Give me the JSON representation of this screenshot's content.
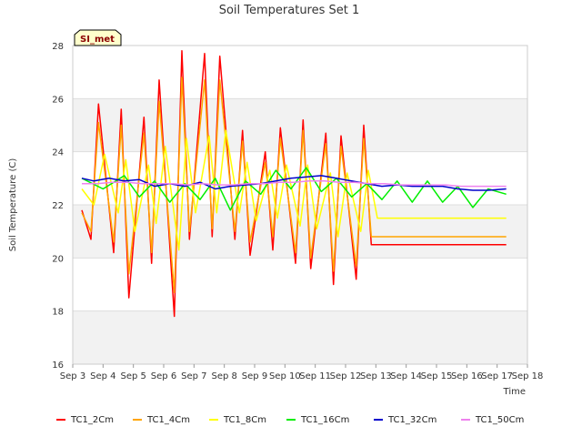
{
  "chart_data": {
    "type": "line",
    "title": "Soil Temperatures Set 1",
    "xlabel": "Time",
    "ylabel": "Soil Temperature (C)",
    "badge": "SI_met",
    "ylim": [
      16,
      28
    ],
    "yticks": [
      16,
      18,
      20,
      22,
      24,
      26,
      28
    ],
    "xlim": [
      3,
      18
    ],
    "xticks": [
      {
        "v": 3,
        "label": "Sep 3"
      },
      {
        "v": 4,
        "label": "Sep 4"
      },
      {
        "v": 5,
        "label": "Sep 5"
      },
      {
        "v": 6,
        "label": "Sep 6"
      },
      {
        "v": 7,
        "label": "Sep 7"
      },
      {
        "v": 8,
        "label": "Sep 8"
      },
      {
        "v": 9,
        "label": "Sep 9"
      },
      {
        "v": 10,
        "label": "Sep 10"
      },
      {
        "v": 11,
        "label": "Sep 11"
      },
      {
        "v": 12,
        "label": "Sep 12"
      },
      {
        "v": 13,
        "label": "Sep 13"
      },
      {
        "v": 14,
        "label": "Sep 14"
      },
      {
        "v": 15,
        "label": "Sep 15"
      },
      {
        "v": 16,
        "label": "Sep 16"
      },
      {
        "v": 17,
        "label": "Sep 17"
      },
      {
        "v": 18,
        "label": "Sep 18"
      }
    ],
    "grid": true,
    "legend_position": "bottom",
    "series": [
      {
        "name": "TC1_2Cm",
        "color": "#ff0000",
        "x": [
          3.3,
          3.6,
          3.85,
          4.35,
          4.6,
          4.85,
          5.35,
          5.6,
          5.85,
          6.35,
          6.6,
          6.85,
          7.35,
          7.6,
          7.85,
          8.35,
          8.6,
          8.85,
          9.35,
          9.6,
          9.85,
          10.35,
          10.6,
          10.85,
          11.35,
          11.6,
          11.85,
          12.35,
          12.6,
          12.85,
          13.35,
          13.6,
          13.85,
          14.35,
          14.6,
          14.85,
          15.35,
          15.6,
          15.85,
          16.35,
          16.6,
          16.85,
          17.3
        ],
        "y": [
          21.8,
          20.7,
          25.8,
          20.2,
          25.6,
          18.5,
          25.3,
          19.8,
          26.7,
          17.8,
          27.8,
          20.7,
          27.7,
          20.8,
          27.6,
          20.7,
          24.8,
          20.1,
          24.0,
          20.3,
          24.9,
          19.8,
          25.2,
          19.6,
          24.7,
          19.0,
          24.6,
          19.2,
          25.0,
          20.5,
          20.5,
          20.5,
          20.5,
          20.5,
          20.5,
          20.5,
          20.5,
          20.5,
          20.5,
          20.5,
          20.5,
          20.5,
          20.5
        ]
      },
      {
        "name": "TC1_4Cm",
        "color": "#ffa500",
        "x": [
          3.3,
          3.6,
          3.85,
          4.35,
          4.6,
          4.85,
          5.35,
          5.6,
          5.85,
          6.35,
          6.6,
          6.85,
          7.35,
          7.6,
          7.85,
          8.35,
          8.6,
          8.85,
          9.35,
          9.6,
          9.85,
          10.35,
          10.6,
          10.85,
          11.35,
          11.6,
          11.85,
          12.35,
          12.6,
          12.85,
          13.35,
          13.6,
          13.85,
          14.35,
          14.6,
          14.85,
          15.35,
          15.6,
          15.85,
          16.35,
          16.6,
          16.85,
          17.3
        ],
        "y": [
          21.7,
          21.0,
          25.1,
          20.6,
          25.0,
          19.4,
          24.7,
          20.2,
          25.9,
          18.7,
          26.8,
          21.0,
          26.7,
          21.1,
          26.7,
          21.0,
          24.4,
          20.6,
          23.6,
          20.8,
          24.5,
          20.2,
          24.8,
          20.0,
          24.3,
          19.5,
          24.2,
          19.7,
          24.5,
          20.8,
          20.8,
          20.8,
          20.8,
          20.8,
          20.8,
          20.8,
          20.8,
          20.8,
          20.8,
          20.8,
          20.8,
          20.8,
          20.8
        ]
      },
      {
        "name": "TC1_8Cm",
        "color": "#ffff00",
        "x": [
          3.3,
          3.7,
          4.05,
          4.5,
          4.75,
          5.05,
          5.5,
          5.75,
          6.05,
          6.5,
          6.75,
          7.05,
          7.5,
          7.75,
          8.05,
          8.5,
          8.75,
          9.05,
          9.5,
          9.75,
          10.05,
          10.5,
          10.75,
          11.05,
          11.5,
          11.75,
          12.05,
          12.5,
          12.75,
          13.05,
          13.5,
          13.75,
          14.05,
          14.5,
          14.75,
          15.05,
          15.5,
          15.75,
          16.05,
          16.5,
          16.75,
          17.05,
          17.3
        ],
        "y": [
          22.6,
          22.0,
          23.9,
          21.7,
          23.7,
          21.0,
          23.5,
          21.3,
          24.2,
          20.3,
          24.5,
          21.7,
          24.6,
          21.7,
          24.8,
          21.7,
          23.6,
          21.4,
          23.3,
          21.5,
          23.5,
          21.2,
          23.5,
          21.1,
          23.2,
          20.8,
          23.2,
          21.0,
          23.3,
          21.5,
          21.5,
          21.5,
          21.5,
          21.5,
          21.5,
          21.5,
          21.5,
          21.5,
          21.5,
          21.5,
          21.5,
          21.5,
          21.5
        ]
      },
      {
        "name": "TC1_16Cm",
        "color": "#00ee00",
        "x": [
          3.3,
          4.0,
          4.7,
          5.2,
          5.7,
          6.2,
          6.7,
          7.2,
          7.7,
          8.2,
          8.7,
          9.2,
          9.7,
          10.2,
          10.7,
          11.2,
          11.7,
          12.2,
          12.7,
          13.2,
          13.7,
          14.2,
          14.7,
          15.2,
          15.7,
          16.2,
          16.7,
          17.3
        ],
        "y": [
          23.0,
          22.6,
          23.1,
          22.3,
          22.9,
          22.1,
          22.8,
          22.2,
          23.0,
          21.8,
          22.9,
          22.4,
          23.3,
          22.6,
          23.4,
          22.5,
          23.0,
          22.3,
          22.8,
          22.2,
          22.9,
          22.1,
          22.9,
          22.1,
          22.7,
          21.9,
          22.6,
          22.4
        ]
      },
      {
        "name": "TC1_32Cm",
        "color": "#0000cc",
        "x": [
          3.3,
          3.7,
          4.2,
          4.7,
          5.2,
          5.7,
          6.2,
          6.7,
          7.2,
          7.7,
          8.2,
          8.7,
          9.2,
          9.7,
          10.2,
          10.7,
          11.2,
          11.7,
          12.2,
          12.7,
          13.2,
          13.7,
          14.2,
          14.7,
          15.2,
          15.7,
          16.2,
          16.7,
          17.3
        ],
        "y": [
          23.0,
          22.9,
          23.0,
          22.9,
          22.95,
          22.7,
          22.8,
          22.7,
          22.85,
          22.6,
          22.7,
          22.75,
          22.8,
          22.9,
          23.0,
          23.05,
          23.1,
          23.0,
          22.9,
          22.8,
          22.7,
          22.75,
          22.7,
          22.7,
          22.7,
          22.6,
          22.55,
          22.55,
          22.6
        ]
      },
      {
        "name": "TC1_50Cm",
        "color": "#ee82ee",
        "x": [
          3.3,
          3.8,
          4.3,
          4.8,
          5.3,
          5.8,
          6.3,
          6.8,
          7.3,
          7.8,
          8.3,
          8.8,
          9.3,
          9.8,
          10.3,
          10.8,
          11.3,
          11.8,
          12.3,
          12.8,
          13.3,
          13.8,
          14.3,
          14.8,
          15.3,
          15.8,
          16.3,
          16.8,
          17.3
        ],
        "y": [
          22.8,
          22.8,
          22.85,
          22.85,
          22.8,
          22.8,
          22.8,
          22.75,
          22.8,
          22.75,
          22.75,
          22.8,
          22.8,
          22.85,
          22.85,
          22.9,
          22.9,
          22.85,
          22.85,
          22.8,
          22.8,
          22.75,
          22.75,
          22.75,
          22.75,
          22.7,
          22.7,
          22.7,
          22.7
        ]
      }
    ]
  }
}
